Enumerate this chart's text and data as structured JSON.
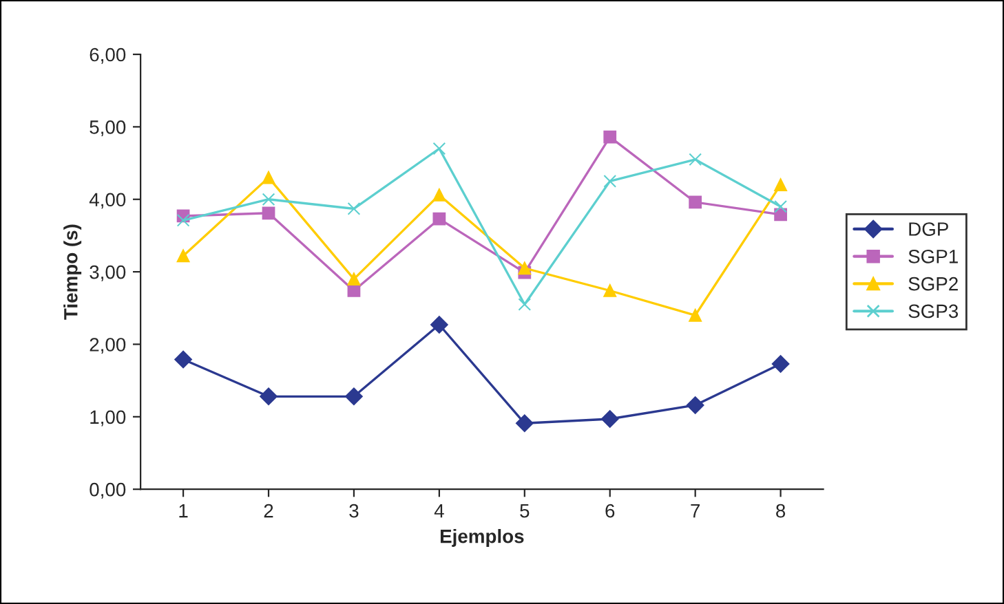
{
  "chart_data": {
    "type": "line",
    "xlabel": "Ejemplos",
    "ylabel": "Tiempo (s)",
    "categories": [
      "1",
      "2",
      "3",
      "4",
      "5",
      "6",
      "7",
      "8"
    ],
    "series": [
      {
        "name": "DGP",
        "color": "#2b3990",
        "marker": "diamond",
        "values": [
          1.79,
          1.28,
          1.28,
          2.27,
          0.91,
          0.97,
          1.16,
          1.73
        ]
      },
      {
        "name": "SGP1",
        "color": "#bb66bb",
        "marker": "square",
        "values": [
          3.77,
          3.81,
          2.74,
          3.73,
          2.99,
          4.86,
          3.96,
          3.79
        ]
      },
      {
        "name": "SGP2",
        "color": "#ffcc00",
        "marker": "triangle",
        "values": [
          3.22,
          4.3,
          2.9,
          4.06,
          3.05,
          2.74,
          2.4,
          4.2
        ]
      },
      {
        "name": "SGP3",
        "color": "#5ccfcf",
        "marker": "cross",
        "values": [
          3.71,
          4.0,
          3.87,
          4.7,
          2.55,
          4.25,
          4.55,
          3.9
        ]
      }
    ],
    "ylim": [
      0,
      6
    ],
    "yticks": [
      {
        "value": 0,
        "label": "0,00"
      },
      {
        "value": 1,
        "label": "1,00"
      },
      {
        "value": 2,
        "label": "2,00"
      },
      {
        "value": 3,
        "label": "3,00"
      },
      {
        "value": 4,
        "label": "4,00"
      },
      {
        "value": 5,
        "label": "5,00"
      },
      {
        "value": 6,
        "label": "6,00"
      }
    ],
    "grid": false,
    "legend": "right",
    "line_style": "solid"
  }
}
